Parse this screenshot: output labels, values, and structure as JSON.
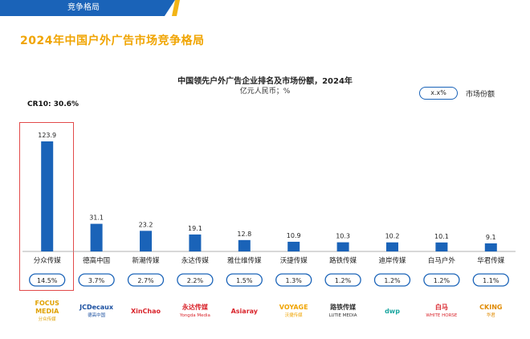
{
  "header": {
    "tab_label": "竞争格局"
  },
  "page": {
    "title": "2024年中国户外广告市场竞争格局"
  },
  "chart_data": {
    "type": "bar",
    "title": "中国领先户外广告企业排名及市场份额，2024年",
    "subtitle": "亿元人民币；%",
    "legend": {
      "sample": "x.x%",
      "label": "市场份额"
    },
    "cr10": "CR10: 30.6%",
    "categories": [
      "分众传媒",
      "德高中国",
      "新潮传媒",
      "永达传媒",
      "雅仕维传媒",
      "沃捷传媒",
      "路铁传媒",
      "迪岸传媒",
      "白马户外",
      "华君传媒"
    ],
    "values": [
      123.9,
      31.1,
      23.2,
      19.1,
      12.8,
      10.9,
      10.3,
      10.2,
      10.1,
      9.1
    ],
    "value_labels": [
      "123.9",
      "31.1",
      "23.2",
      "19.1",
      "12.8",
      "10.9",
      "10.3",
      "10.2",
      "10.1",
      "9.1"
    ],
    "shares": [
      "14.5%",
      "3.7%",
      "2.7%",
      "2.2%",
      "1.5%",
      "1.3%",
      "1.2%",
      "1.2%",
      "1.2%",
      "1.1%"
    ],
    "ylim": [
      0,
      130
    ],
    "grid": false,
    "highlight_index": 0,
    "colors": {
      "bar": "#1a63b8",
      "pill_border": "#1a63b8",
      "highlight": "#e24a4a",
      "title": "#f0a400"
    }
  },
  "logos": [
    {
      "name": "分众传媒",
      "text": "FOCUS MEDIA",
      "sub": "分众传媒",
      "color": "#e0a100"
    },
    {
      "name": "德高中国",
      "text": "JCDecaux",
      "sub": "德高中国",
      "color": "#1a4fa0"
    },
    {
      "name": "新潮传媒",
      "text": "XinChao",
      "sub": "",
      "color": "#d9242b"
    },
    {
      "name": "永达传媒",
      "text": "永达传媒",
      "sub": "Yongda Media",
      "color": "#d9242b"
    },
    {
      "name": "雅仕维传媒",
      "text": "Asiaray",
      "sub": "",
      "color": "#d9242b"
    },
    {
      "name": "沃捷传媒",
      "text": "VOYAGE",
      "sub": "沃捷传媒",
      "color": "#f0a400"
    },
    {
      "name": "路铁传媒",
      "text": "路铁传媒",
      "sub": "LUTIE MEDIA",
      "color": "#333333"
    },
    {
      "name": "迪岸传媒",
      "text": "dwp",
      "sub": "",
      "color": "#1aa6a0"
    },
    {
      "name": "白马户外",
      "text": "白马",
      "sub": "WHITE HORSE",
      "color": "#d9242b"
    },
    {
      "name": "华君传媒",
      "text": "CKING",
      "sub": "华君",
      "color": "#e08a00"
    }
  ]
}
